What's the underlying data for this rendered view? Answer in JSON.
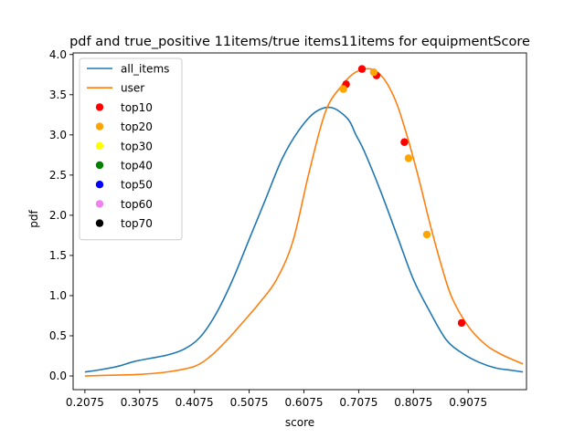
{
  "chart_data": {
    "type": "line",
    "title": "pdf and true_positive 11items/true items11items for equipmentScore",
    "xlabel": "score",
    "ylabel": "pdf",
    "xlim": [
      0.186,
      1.014
    ],
    "ylim": [
      -0.17,
      4.02
    ],
    "xticks": [
      0.2075,
      0.3075,
      0.4075,
      0.5075,
      0.6075,
      0.7075,
      0.8075,
      0.9075
    ],
    "xtick_labels": [
      "0.2075",
      "0.3075",
      "0.4075",
      "0.5075",
      "0.6075",
      "0.7075",
      "0.8075",
      "0.9075"
    ],
    "yticks": [
      0.0,
      0.5,
      1.0,
      1.5,
      2.0,
      2.5,
      3.0,
      3.5,
      4.0
    ],
    "ytick_labels": [
      "0.0",
      "0.5",
      "1.0",
      "1.5",
      "2.0",
      "2.5",
      "3.0",
      "3.5",
      "4.0"
    ],
    "grid": false,
    "legend_position": "top-left",
    "series": [
      {
        "name": "all_items",
        "color": "#1f77b4",
        "x": [
          0.2075,
          0.2375,
          0.2675,
          0.2975,
          0.3275,
          0.3575,
          0.3875,
          0.4175,
          0.4475,
          0.4775,
          0.5075,
          0.5375,
          0.5675,
          0.5975,
          0.6275,
          0.6575,
          0.6875,
          0.7025,
          0.7175,
          0.7475,
          0.7775,
          0.8075,
          0.8375,
          0.8675,
          0.8975,
          0.9275,
          0.9575,
          0.9875,
          1.0075
        ],
        "y": [
          0.05,
          0.08,
          0.12,
          0.18,
          0.22,
          0.26,
          0.33,
          0.48,
          0.78,
          1.2,
          1.7,
          2.2,
          2.7,
          3.05,
          3.28,
          3.34,
          3.2,
          3.0,
          2.8,
          2.3,
          1.75,
          1.2,
          0.8,
          0.45,
          0.28,
          0.17,
          0.1,
          0.07,
          0.05
        ]
      },
      {
        "name": "user",
        "color": "#ff7f0e",
        "x": [
          0.2075,
          0.2575,
          0.3075,
          0.3575,
          0.4075,
          0.4375,
          0.4675,
          0.4975,
          0.5275,
          0.5575,
          0.5875,
          0.6175,
          0.6475,
          0.6775,
          0.6975,
          0.7175,
          0.7375,
          0.7575,
          0.7775,
          0.7975,
          0.8175,
          0.8375,
          0.8575,
          0.8775,
          0.9075,
          0.9375,
          0.9675,
          1.0075
        ],
        "y": [
          0.0,
          0.01,
          0.02,
          0.05,
          0.12,
          0.25,
          0.45,
          0.68,
          0.92,
          1.2,
          1.68,
          2.55,
          3.3,
          3.62,
          3.76,
          3.82,
          3.8,
          3.66,
          3.38,
          2.95,
          2.45,
          1.9,
          1.4,
          0.98,
          0.62,
          0.4,
          0.27,
          0.15
        ]
      }
    ],
    "scatter": [
      {
        "name": "top10",
        "color": "#ff0000",
        "x": [
          0.6845,
          0.7135,
          0.74,
          0.791,
          0.8955
        ],
        "y": [
          3.63,
          3.82,
          3.74,
          2.91,
          0.66
        ]
      },
      {
        "name": "top20",
        "color": "#ffa500",
        "x": [
          0.6795,
          0.735,
          0.7985,
          0.832
        ],
        "y": [
          3.57,
          3.78,
          2.71,
          1.76
        ]
      },
      {
        "name": "top30",
        "color": "#ffff00",
        "x": [],
        "y": []
      },
      {
        "name": "top40",
        "color": "#008000",
        "x": [],
        "y": []
      },
      {
        "name": "top50",
        "color": "#0000ff",
        "x": [],
        "y": []
      },
      {
        "name": "top60",
        "color": "#ee82ee",
        "x": [],
        "y": []
      },
      {
        "name": "top70",
        "color": "#000000",
        "x": [],
        "y": []
      }
    ]
  }
}
